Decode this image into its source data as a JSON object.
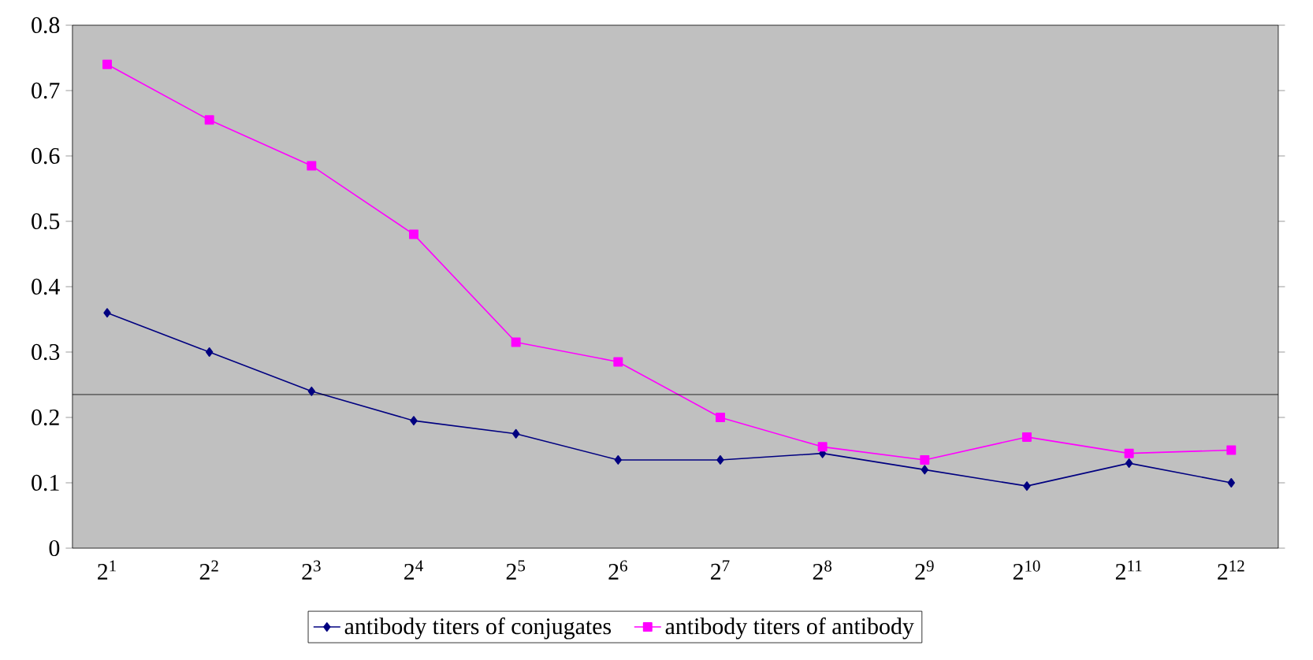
{
  "chart_data": {
    "type": "line",
    "categories": [
      "2$^{1}$",
      "2$^{2}$",
      "2$^{3}$",
      "2$^{4}$",
      "2$^{5}$",
      "2$^{6}$",
      "2$^{7}$",
      "2$^{8}$",
      "2$^{9}$",
      "2$^{10}$",
      "2$^{11}$",
      "2$^{12}$"
    ],
    "series": [
      {
        "name": "antibody titers of conjugates",
        "color": "#000080",
        "marker": "diamond",
        "values": [
          0.36,
          0.3,
          0.24,
          0.195,
          0.175,
          0.135,
          0.135,
          0.145,
          0.12,
          0.095,
          0.13,
          0.1
        ]
      },
      {
        "name": "antibody titers of antibody",
        "color": "#ff00ff",
        "marker": "square",
        "values": [
          0.74,
          0.655,
          0.585,
          0.48,
          0.315,
          0.285,
          0.2,
          0.155,
          0.135,
          0.17,
          0.145,
          0.15
        ]
      }
    ],
    "ylim": [
      0,
      0.8
    ],
    "yticks": [
      0,
      0.1,
      0.2,
      0.3,
      0.4,
      0.5,
      0.6,
      0.7,
      0.8
    ],
    "ref_lines": [
      {
        "axis": "y",
        "value": 0.235,
        "color": "#000000"
      }
    ],
    "grid": false,
    "legend": "bottom",
    "line_style": "solid"
  }
}
